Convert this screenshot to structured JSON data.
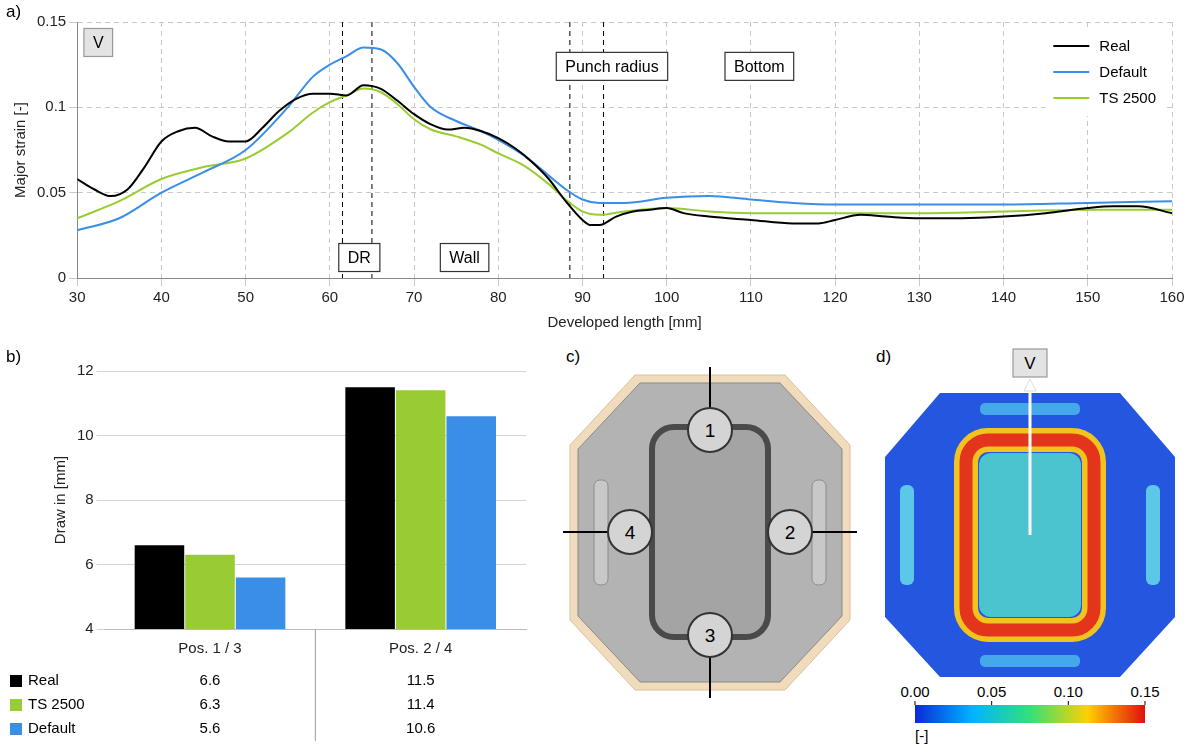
{
  "chart_data": [
    {
      "panel_label": "a)",
      "type": "line",
      "xlabel": "Developed length [mm]",
      "ylabel": "Major strain [-]",
      "xlim": [
        30,
        160
      ],
      "xticks": [
        30,
        40,
        50,
        60,
        70,
        80,
        90,
        100,
        110,
        120,
        130,
        140,
        150,
        160
      ],
      "ylim": [
        0,
        0.15
      ],
      "yticks": [
        0,
        0.05,
        0.1,
        0.15
      ],
      "grid": true,
      "legend": "upper right",
      "vlines": [
        61.5,
        65,
        88.5,
        92.5
      ],
      "annotations": [
        {
          "text": "V",
          "x": 32.5,
          "y": 0.138
        },
        {
          "text": "DR",
          "x": 63.5,
          "y": 0.012
        },
        {
          "text": "Wall",
          "x": 76,
          "y": 0.012
        },
        {
          "text": "Punch radius",
          "x": 93.5,
          "y": 0.124
        },
        {
          "text": "Bottom",
          "x": 111,
          "y": 0.124
        }
      ],
      "series": [
        {
          "name": "Real",
          "color": "#000000",
          "x": [
            30,
            32,
            34,
            36,
            38,
            40,
            42,
            44,
            46,
            48,
            50,
            52,
            54,
            56,
            58,
            60,
            62,
            64,
            66,
            68,
            70,
            72,
            74,
            76,
            78,
            80,
            82,
            84,
            86,
            88,
            90,
            91,
            92,
            94,
            96,
            98,
            100,
            102,
            105,
            110,
            115,
            118,
            120,
            123,
            126,
            130,
            135,
            140,
            145,
            150,
            153,
            156,
            160
          ],
          "values": [
            0.058,
            0.052,
            0.048,
            0.052,
            0.065,
            0.08,
            0.086,
            0.088,
            0.083,
            0.08,
            0.08,
            0.088,
            0.098,
            0.105,
            0.108,
            0.108,
            0.107,
            0.113,
            0.111,
            0.104,
            0.096,
            0.09,
            0.087,
            0.088,
            0.086,
            0.082,
            0.076,
            0.068,
            0.058,
            0.045,
            0.034,
            0.031,
            0.031,
            0.036,
            0.039,
            0.04,
            0.041,
            0.038,
            0.036,
            0.034,
            0.032,
            0.032,
            0.034,
            0.037,
            0.036,
            0.035,
            0.035,
            0.036,
            0.038,
            0.041,
            0.042,
            0.042,
            0.038
          ]
        },
        {
          "name": "Default",
          "color": "#3a8ee6",
          "x": [
            30,
            35,
            40,
            45,
            50,
            55,
            58,
            60,
            62,
            64,
            66,
            68,
            70,
            72,
            75,
            78,
            80,
            83,
            86,
            88,
            90,
            92,
            95,
            100,
            105,
            110,
            115,
            120,
            130,
            140,
            150,
            160
          ],
          "values": [
            0.028,
            0.035,
            0.05,
            0.062,
            0.075,
            0.1,
            0.118,
            0.125,
            0.13,
            0.135,
            0.134,
            0.126,
            0.112,
            0.1,
            0.092,
            0.086,
            0.081,
            0.072,
            0.06,
            0.052,
            0.046,
            0.044,
            0.044,
            0.047,
            0.048,
            0.046,
            0.044,
            0.043,
            0.043,
            0.043,
            0.044,
            0.045
          ]
        },
        {
          "name": "TS 2500",
          "color": "#99cc33",
          "x": [
            30,
            35,
            40,
            45,
            50,
            55,
            58,
            60,
            62,
            64,
            66,
            68,
            70,
            72,
            75,
            78,
            80,
            83,
            86,
            88,
            90,
            92,
            95,
            100,
            105,
            110,
            120,
            130,
            140,
            150,
            160
          ],
          "values": [
            0.035,
            0.045,
            0.058,
            0.065,
            0.07,
            0.085,
            0.097,
            0.103,
            0.107,
            0.111,
            0.109,
            0.102,
            0.093,
            0.087,
            0.083,
            0.078,
            0.073,
            0.066,
            0.055,
            0.046,
            0.039,
            0.037,
            0.039,
            0.041,
            0.039,
            0.038,
            0.038,
            0.038,
            0.039,
            0.04,
            0.04
          ]
        }
      ]
    },
    {
      "panel_label": "b)",
      "type": "bar",
      "ylabel": "Draw in [mm]",
      "categories": [
        "Pos. 1 / 3",
        "Pos. 2 / 4"
      ],
      "ylim": [
        4,
        12
      ],
      "yticks": [
        4,
        6,
        8,
        10,
        12
      ],
      "grid": true,
      "series": [
        {
          "name": "Real",
          "color": "#000000",
          "values": [
            6.6,
            11.5
          ]
        },
        {
          "name": "TS 2500",
          "color": "#99cc33",
          "values": [
            6.3,
            11.4
          ]
        },
        {
          "name": "Default",
          "color": "#3a8ee6",
          "values": [
            5.6,
            10.6
          ]
        }
      ]
    }
  ],
  "panel_c": {
    "panel_label": "c)",
    "markers": [
      "1",
      "2",
      "3",
      "4"
    ]
  },
  "panel_d": {
    "panel_label": "d)",
    "marker": "V",
    "colorbar": {
      "range": [
        0,
        0.15
      ],
      "ticks": [
        {
          "value": 0,
          "label": "0.00"
        },
        {
          "value": 0.05,
          "label": "0.05"
        },
        {
          "value": 0.1,
          "label": "0.10"
        },
        {
          "value": 0.15,
          "label": "0.15"
        }
      ],
      "title": "[-]"
    }
  }
}
